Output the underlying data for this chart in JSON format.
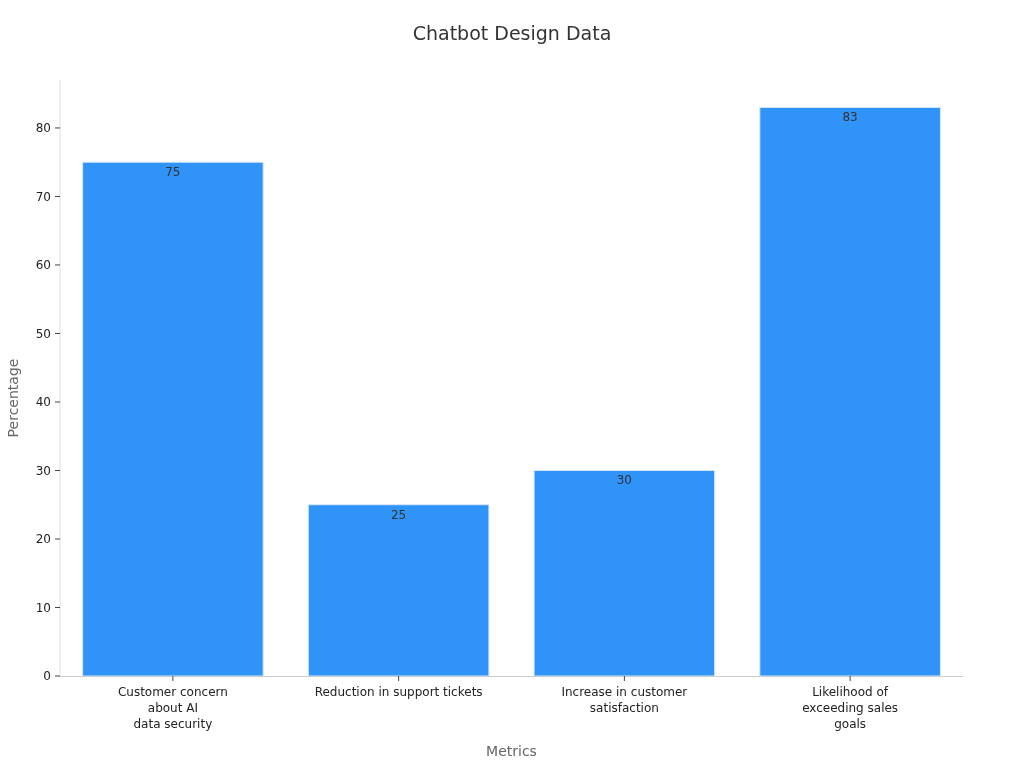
{
  "chart_data": {
    "type": "bar",
    "title": "Chatbot Design Data",
    "xlabel": "Metrics",
    "ylabel": "Percentage",
    "categories": [
      "Customer concern\nabout AI\ndata security",
      "Reduction in support tickets",
      "Increase in customer\nsatisfaction",
      "Likelihood of\nexceeding sales\ngoals"
    ],
    "values": [
      75,
      25,
      30,
      83
    ],
    "color": "#3093f8",
    "ylim": [
      0,
      87
    ],
    "yticks": [
      0,
      10,
      20,
      30,
      40,
      50,
      60,
      70,
      80
    ],
    "grid": false,
    "data_labels": true
  }
}
